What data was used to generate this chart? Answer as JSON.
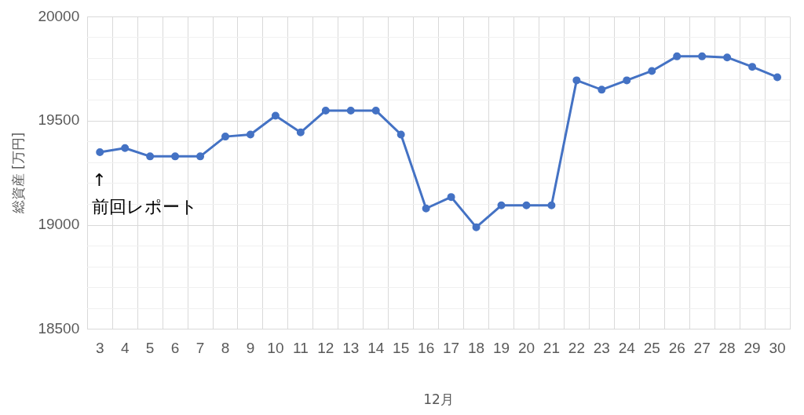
{
  "chart_data": {
    "type": "line",
    "xlabel": "12月",
    "ylabel": "総資産 [万円]",
    "categories": [
      "3",
      "4",
      "5",
      "6",
      "7",
      "8",
      "9",
      "10",
      "11",
      "12",
      "13",
      "14",
      "15",
      "16",
      "17",
      "18",
      "19",
      "20",
      "21",
      "22",
      "23",
      "24",
      "25",
      "26",
      "27",
      "28",
      "29",
      "30"
    ],
    "series": [
      {
        "color": "#4472c4",
        "values": [
          19350,
          19370,
          19330,
          19330,
          19330,
          19425,
          19435,
          19525,
          19445,
          19550,
          19550,
          19550,
          19435,
          19080,
          19135,
          18990,
          19095,
          19095,
          19095,
          19695,
          19650,
          19695,
          19740,
          19810,
          19810,
          19805,
          19760,
          19710
        ]
      }
    ],
    "ylim": [
      18500,
      20000
    ],
    "yticks": [
      18500,
      {
        "value": 18600,
        "label": null
      },
      {
        "value": 18700,
        "label": null
      },
      {
        "value": 18800,
        "label": null
      },
      {
        "value": 18900,
        "label": null
      },
      19000,
      {
        "value": 19100,
        "label": null
      },
      {
        "value": 19200,
        "label": null
      },
      {
        "value": 19300,
        "label": null
      },
      {
        "value": 19400,
        "label": null
      },
      19500,
      {
        "value": 19600,
        "label": null
      },
      {
        "value": 19700,
        "label": null
      },
      {
        "value": 19800,
        "label": null
      },
      {
        "value": 19900,
        "label": null
      },
      20000
    ],
    "grid": true,
    "legend": false,
    "marker": "circle",
    "line_style": "solid",
    "annotations": [
      {
        "text": "↑\n前回レポート",
        "x": "3",
        "y": 19350
      }
    ]
  }
}
